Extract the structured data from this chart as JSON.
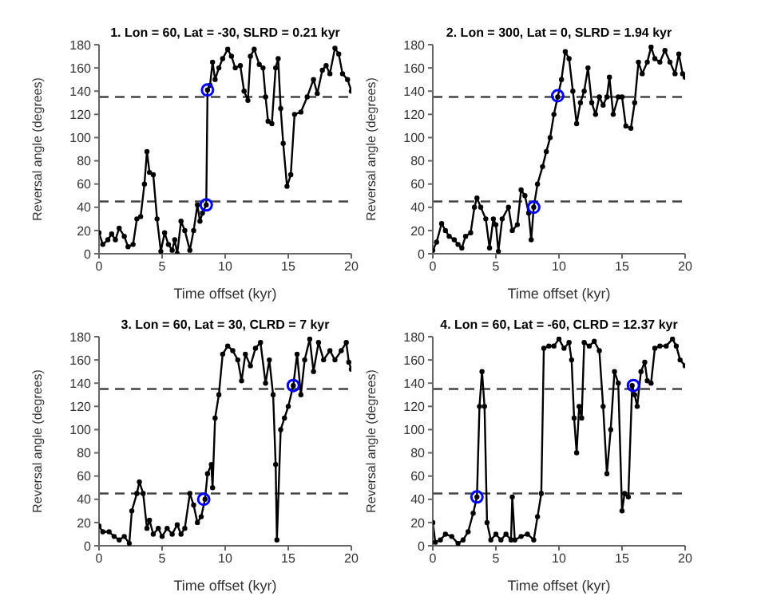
{
  "chart_data": [
    {
      "type": "line",
      "title": "1. Lon = 60, Lat = -30,  SLRD = 0.21 kyr",
      "xlabel": "Time offset (kyr)",
      "ylabel": "Reversal angle (degrees)",
      "xlim": [
        0,
        20
      ],
      "xticks": [
        0,
        5,
        10,
        15,
        20
      ],
      "ylim": [
        0,
        180
      ],
      "yticks": [
        0,
        20,
        40,
        60,
        80,
        100,
        120,
        140,
        160,
        180
      ],
      "grid": false,
      "legend": false,
      "ref_lines": [
        {
          "axis": "y",
          "value": 45,
          "color": "#444444",
          "line_style": "dashed"
        },
        {
          "axis": "y",
          "value": 135,
          "color": "#444444",
          "line_style": "dashed"
        }
      ],
      "series": [
        {
          "color": "#000000",
          "marker": "circle",
          "line_style": "solid",
          "x": [
            0,
            0.3,
            0.7,
            1,
            1.3,
            1.6,
            2,
            2.3,
            2.7,
            3,
            3.3,
            3.6,
            3.8,
            4,
            4.3,
            4.6,
            4.9,
            5.2,
            5.5,
            5.8,
            6,
            6.2,
            6.5,
            6.8,
            7.2,
            7.5,
            7.8,
            8,
            8.2,
            8.5,
            8.6,
            8.8,
            9,
            9.2,
            9.5,
            9.8,
            10.2,
            10.5,
            10.8,
            11.2,
            11.5,
            11.8,
            12,
            12.3,
            12.7,
            13,
            13.2,
            13.4,
            13.7,
            14,
            14.2,
            14.4,
            14.6,
            14.9,
            15.2,
            15.5,
            16,
            16.5,
            17,
            17.3,
            17.7,
            18,
            18.3,
            18.7,
            19,
            19.3,
            19.7,
            20
          ],
          "values": [
            18,
            8,
            12,
            17,
            12,
            22,
            15,
            6,
            8,
            30,
            32,
            60,
            88,
            70,
            68,
            30,
            2,
            18,
            8,
            3,
            12,
            0,
            28,
            20,
            3,
            20,
            42,
            28,
            35,
            42,
            141,
            145,
            165,
            150,
            160,
            168,
            176,
            170,
            160,
            162,
            140,
            132,
            170,
            176,
            163,
            160,
            135,
            114,
            112,
            160,
            168,
            125,
            95,
            58,
            68,
            120,
            122,
            135,
            150,
            138,
            158,
            162,
            155,
            177,
            172,
            155,
            150,
            140
          ]
        },
        {
          "type": "scatter",
          "color": "#0000ff",
          "marker": "circle",
          "x": [
            8.5,
            8.6
          ],
          "values": [
            42,
            141
          ]
        }
      ]
    },
    {
      "type": "line",
      "title": "2. Lon = 300, Lat = 0,  SLRD = 1.94 kyr",
      "xlabel": "Time offset (kyr)",
      "ylabel": "Reversal angle (degrees)",
      "xlim": [
        0,
        20
      ],
      "xticks": [
        0,
        5,
        10,
        15,
        20
      ],
      "ylim": [
        0,
        180
      ],
      "yticks": [
        0,
        20,
        40,
        60,
        80,
        100,
        120,
        140,
        160,
        180
      ],
      "grid": false,
      "legend": false,
      "ref_lines": [
        {
          "axis": "y",
          "value": 45,
          "color": "#444444",
          "line_style": "dashed"
        },
        {
          "axis": "y",
          "value": 135,
          "color": "#444444",
          "line_style": "dashed"
        }
      ],
      "series": [
        {
          "color": "#000000",
          "marker": "circle",
          "line_style": "solid",
          "x": [
            0,
            0.3,
            0.7,
            1,
            1.3,
            1.7,
            2,
            2.3,
            2.6,
            3,
            3.3,
            3.5,
            3.8,
            4.2,
            4.5,
            4.8,
            5,
            5.2,
            5.5,
            6,
            6.3,
            6.7,
            7,
            7.3,
            7.6,
            7.8,
            8,
            8.3,
            8.7,
            9,
            9.3,
            9.6,
            9.9,
            10.2,
            10.5,
            10.8,
            11.1,
            11.4,
            11.7,
            12,
            12.3,
            12.6,
            12.9,
            13.2,
            13.5,
            13.8,
            14,
            14.3,
            14.7,
            15,
            15.3,
            15.7,
            16,
            16.3,
            16.6,
            17,
            17.3,
            17.6,
            18,
            18.4,
            18.8,
            19.2,
            19.5,
            19.8,
            20
          ],
          "values": [
            3,
            10,
            26,
            20,
            15,
            12,
            8,
            5,
            15,
            18,
            40,
            48,
            40,
            30,
            5,
            30,
            25,
            2,
            30,
            40,
            20,
            25,
            55,
            50,
            35,
            12,
            40,
            60,
            75,
            88,
            100,
            120,
            135,
            150,
            174,
            168,
            140,
            112,
            130,
            140,
            160,
            130,
            120,
            135,
            128,
            135,
            152,
            120,
            135,
            135,
            110,
            108,
            130,
            165,
            155,
            165,
            178,
            168,
            165,
            175,
            165,
            155,
            172,
            155,
            152
          ]
        },
        {
          "type": "scatter",
          "color": "#0000ff",
          "marker": "circle",
          "x": [
            8,
            9.9
          ],
          "values": [
            40,
            136
          ]
        }
      ]
    },
    {
      "type": "line",
      "title": "3. Lon = 60, Lat = 30,  CLRD = 7 kyr",
      "xlabel": "Time offset (kyr)",
      "ylabel": "Reversal angle (degrees)",
      "xlim": [
        0,
        20
      ],
      "xticks": [
        0,
        5,
        10,
        15,
        20
      ],
      "ylim": [
        0,
        180
      ],
      "yticks": [
        0,
        20,
        40,
        60,
        80,
        100,
        120,
        140,
        160,
        180
      ],
      "grid": false,
      "legend": false,
      "ref_lines": [
        {
          "axis": "y",
          "value": 45,
          "color": "#444444",
          "line_style": "dashed"
        },
        {
          "axis": "y",
          "value": 135,
          "color": "#444444",
          "line_style": "dashed"
        }
      ],
      "series": [
        {
          "color": "#000000",
          "marker": "circle",
          "line_style": "solid",
          "x": [
            0,
            0.3,
            0.8,
            1.2,
            1.6,
            2,
            2.4,
            2.6,
            3,
            3.2,
            3.5,
            3.8,
            4,
            4.3,
            4.7,
            5,
            5.4,
            5.8,
            6.2,
            6.5,
            6.8,
            7.2,
            7.5,
            7.8,
            8.1,
            8.4,
            8.6,
            8.9,
            9,
            9.2,
            9.5,
            9.8,
            10.2,
            10.6,
            11,
            11.3,
            11.6,
            12,
            12.4,
            12.8,
            13.2,
            13.5,
            13.8,
            14,
            14.1,
            14.4,
            14.7,
            15,
            15.4,
            15.7,
            16,
            16.3,
            16.7,
            17,
            17.4,
            17.8,
            18.3,
            18.7,
            19.2,
            19.6,
            19.8,
            20
          ],
          "values": [
            17,
            12,
            12,
            8,
            5,
            8,
            2,
            30,
            45,
            55,
            45,
            15,
            22,
            10,
            15,
            8,
            15,
            10,
            18,
            10,
            15,
            45,
            35,
            20,
            25,
            40,
            62,
            70,
            50,
            110,
            130,
            165,
            172,
            168,
            160,
            142,
            165,
            155,
            170,
            175,
            140,
            160,
            130,
            70,
            5,
            100,
            110,
            120,
            138,
            165,
            130,
            160,
            178,
            150,
            175,
            160,
            168,
            160,
            168,
            175,
            158,
            152
          ]
        },
        {
          "type": "scatter",
          "color": "#0000ff",
          "marker": "circle",
          "x": [
            8.3,
            15.4
          ],
          "values": [
            40,
            138
          ]
        }
      ]
    },
    {
      "type": "line",
      "title": "4. Lon = 60, Lat = -60,  CLRD = 12.37 kyr",
      "xlabel": "Time offset (kyr)",
      "ylabel": "Reversal angle (degrees)",
      "xlim": [
        0,
        20
      ],
      "xticks": [
        0,
        5,
        10,
        15,
        20
      ],
      "ylim": [
        0,
        180
      ],
      "yticks": [
        0,
        20,
        40,
        60,
        80,
        100,
        120,
        140,
        160,
        180
      ],
      "grid": false,
      "legend": false,
      "ref_lines": [
        {
          "axis": "y",
          "value": 45,
          "color": "#444444",
          "line_style": "dashed"
        },
        {
          "axis": "y",
          "value": 135,
          "color": "#444444",
          "line_style": "dashed"
        }
      ],
      "series": [
        {
          "color": "#000000",
          "marker": "circle",
          "line_style": "solid",
          "x": [
            0,
            0.2,
            0.6,
            1,
            1.5,
            2,
            2.4,
            2.8,
            3.2,
            3.5,
            3.7,
            3.9,
            4.1,
            4.3,
            4.6,
            5,
            5.4,
            5.8,
            6.2,
            6.3,
            6.5,
            7,
            7.5,
            8,
            8.3,
            8.6,
            8.8,
            9.2,
            9.6,
            10,
            10.4,
            10.8,
            11,
            11.2,
            11.4,
            11.6,
            11.8,
            12,
            12.4,
            12.8,
            13.2,
            13.5,
            13.8,
            14.1,
            14.4,
            14.7,
            15,
            15.2,
            15.5,
            15.8,
            16,
            16.2,
            16.5,
            16.8,
            17,
            17.3,
            17.6,
            18,
            18.5,
            19,
            19.3,
            19.6,
            20
          ],
          "values": [
            20,
            3,
            5,
            10,
            8,
            2,
            5,
            12,
            28,
            42,
            120,
            150,
            120,
            20,
            5,
            10,
            5,
            10,
            5,
            42,
            5,
            8,
            10,
            5,
            25,
            45,
            170,
            172,
            172,
            178,
            170,
            175,
            160,
            110,
            80,
            120,
            110,
            175,
            172,
            176,
            168,
            120,
            62,
            100,
            150,
            140,
            30,
            45,
            42,
            138,
            130,
            120,
            150,
            158,
            142,
            140,
            170,
            172,
            172,
            178,
            172,
            160,
            155
          ]
        },
        {
          "type": "scatter",
          "color": "#0000ff",
          "marker": "circle",
          "x": [
            3.5,
            15.9
          ],
          "values": [
            42,
            138
          ]
        }
      ]
    }
  ]
}
